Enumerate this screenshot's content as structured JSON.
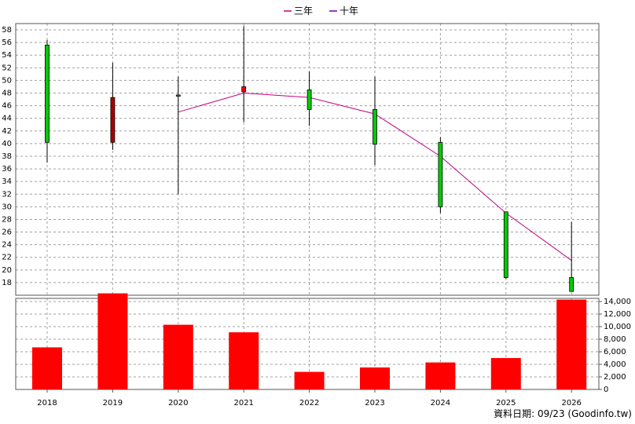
{
  "chart_data": {
    "type": "candlestick",
    "categories": [
      "2018",
      "2019",
      "2020",
      "2021",
      "2022",
      "2023",
      "2024",
      "2025",
      "2026"
    ],
    "legend": [
      {
        "label": "三年",
        "color": "#c00080"
      },
      {
        "label": "十年",
        "color": "#6a00a8"
      }
    ],
    "price": {
      "ylim": [
        16,
        59
      ],
      "ticks": [
        18,
        20,
        22,
        24,
        26,
        28,
        30,
        32,
        34,
        36,
        38,
        40,
        42,
        44,
        46,
        48,
        50,
        52,
        54,
        56,
        58
      ],
      "candles": [
        {
          "year": "2018",
          "open": 40.2,
          "close": 55.6,
          "high": 56.4,
          "low": 37.0,
          "color": "#00cc00"
        },
        {
          "year": "2019",
          "open": 47.3,
          "close": 40.2,
          "high": 52.8,
          "low": 39.0,
          "color": "#aa0000"
        },
        {
          "year": "2020",
          "open": 47.7,
          "close": 47.5,
          "high": 50.6,
          "low": 32.0,
          "color": "#00cc00"
        },
        {
          "year": "2021",
          "open": 48.2,
          "close": 49.0,
          "high": 58.6,
          "low": 43.4,
          "color": "#ff0000"
        },
        {
          "year": "2022",
          "open": 48.5,
          "close": 45.4,
          "high": 51.4,
          "low": 42.8,
          "color": "#00cc00"
        },
        {
          "year": "2023",
          "open": 45.4,
          "close": 39.9,
          "high": 50.6,
          "low": 36.6,
          "color": "#00cc00"
        },
        {
          "year": "2024",
          "open": 40.2,
          "close": 30.0,
          "high": 41.0,
          "low": 29.0,
          "color": "#00cc00"
        },
        {
          "year": "2025",
          "open": 29.2,
          "close": 18.8,
          "high": 29.2,
          "low": 18.6,
          "color": "#00cc00"
        },
        {
          "year": "2026",
          "open": 18.8,
          "close": 16.6,
          "high": 27.6,
          "low": 16.6,
          "color": "#00cc00"
        }
      ],
      "three_year_line": {
        "years": [
          "2020",
          "2021",
          "2022",
          "2023",
          "2024",
          "2025",
          "2026"
        ],
        "values": [
          45.0,
          48.0,
          47.3,
          44.7,
          38.0,
          29.0,
          21.5
        ]
      }
    },
    "volume": {
      "ylim": [
        0,
        14500
      ],
      "ticks": [
        0,
        2000,
        4000,
        6000,
        8000,
        10000,
        12000,
        14000
      ],
      "tick_labels": [
        "0",
        "2,000",
        "4,000",
        "6,000",
        "8,000",
        "10,000",
        "12,000",
        "14,000"
      ],
      "values": [
        6700,
        15300,
        10300,
        9100,
        2800,
        3500,
        4300,
        5000,
        14300
      ]
    },
    "grid": true
  },
  "footer": {
    "text": "資料日期: 09/23  (Goodinfo.tw)"
  }
}
